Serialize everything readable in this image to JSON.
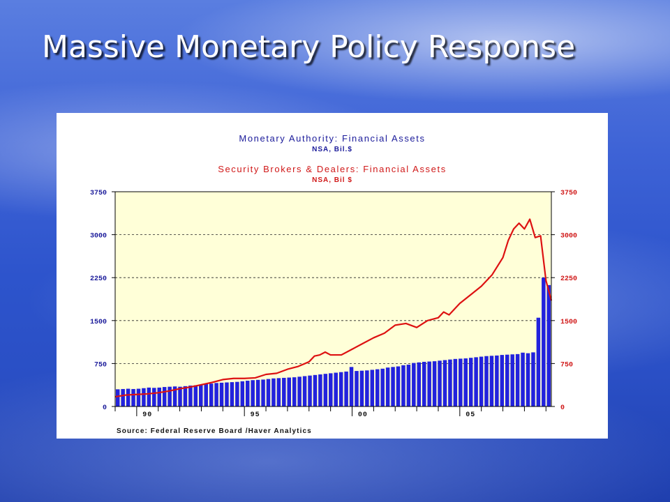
{
  "slide": {
    "title": "Massive Monetary Policy Response"
  },
  "colors": {
    "bar": "#2222dd",
    "line": "#dd1111",
    "plot_bg": "#ffffd8",
    "title_series1": "#1a1a9a",
    "title_series2": "#d01818"
  },
  "chart_data": {
    "type": "bar",
    "title": "Monetary Authority: Financial Assets",
    "subtitle": "NSA, Bil.$",
    "title2": "Security Brokers & Dealers: Financial Assets",
    "subtitle2": "NSA, Bil $",
    "source": "Source:  Federal Reserve Board /Haver Analytics",
    "ylim": [
      0,
      3750
    ],
    "y_ticks": [
      0,
      750,
      1500,
      2250,
      3000,
      3750
    ],
    "y_tick_labels": [
      "0",
      "750",
      "1500",
      "2250",
      "3000",
      "3750"
    ],
    "x_tick_labels": [
      "90",
      "95",
      "00",
      "05"
    ],
    "x_start": 1989.0,
    "x_end": 2009.25,
    "grid": "dashed horizontal at y ticks",
    "series": [
      {
        "type": "bar",
        "axis": "left",
        "values": [
          300,
          305,
          310,
          305,
          310,
          320,
          330,
          325,
          330,
          340,
          345,
          350,
          345,
          355,
          365,
          370,
          380,
          390,
          400,
          410,
          415,
          420,
          425,
          430,
          440,
          450,
          460,
          465,
          470,
          480,
          490,
          495,
          500,
          505,
          510,
          520,
          530,
          540,
          550,
          560,
          570,
          580,
          590,
          600,
          610,
          690,
          620,
          625,
          630,
          640,
          650,
          660,
          680,
          690,
          700,
          720,
          730,
          760,
          770,
          780,
          785,
          790,
          800,
          810,
          820,
          830,
          835,
          840,
          850,
          860,
          870,
          880,
          885,
          890,
          900,
          905,
          910,
          915,
          940,
          930,
          945,
          1550,
          2250,
          2120
        ]
      },
      {
        "type": "line",
        "axis": "right",
        "x": [
          1989.0,
          1989.5,
          1990.0,
          1990.5,
          1991.0,
          1991.5,
          1992.0,
          1992.5,
          1993.0,
          1993.5,
          1994.0,
          1994.5,
          1995.0,
          1995.5,
          1996.0,
          1996.5,
          1997.0,
          1997.5,
          1998.0,
          1998.25,
          1998.5,
          1998.75,
          1999.0,
          1999.5,
          2000.0,
          2000.5,
          2001.0,
          2001.5,
          2002.0,
          2002.5,
          2003.0,
          2003.5,
          2004.0,
          2004.25,
          2004.5,
          2005.0,
          2005.5,
          2006.0,
          2006.5,
          2007.0,
          2007.25,
          2007.5,
          2007.75,
          2008.0,
          2008.25,
          2008.5,
          2008.75,
          2009.0,
          2009.25
        ],
        "values": [
          170,
          200,
          210,
          220,
          240,
          270,
          310,
          340,
          380,
          420,
          470,
          490,
          490,
          500,
          560,
          580,
          650,
          700,
          780,
          880,
          900,
          950,
          900,
          900,
          1000,
          1100,
          1200,
          1280,
          1420,
          1450,
          1380,
          1500,
          1550,
          1650,
          1600,
          1800,
          1950,
          2100,
          2300,
          2600,
          2900,
          3100,
          3200,
          3100,
          3270,
          2950,
          2980,
          2200,
          1850
        ]
      }
    ]
  }
}
